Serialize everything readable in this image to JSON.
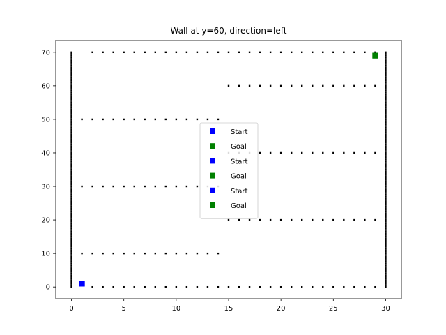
{
  "chart_data": {
    "type": "scatter",
    "title": "Wall at y=60, direction=left",
    "xlabel": "",
    "ylabel": "",
    "xlim": [
      -1.5,
      31.5
    ],
    "ylim": [
      -3.5,
      73.5
    ],
    "x_ticks": [
      0,
      5,
      10,
      15,
      20,
      25,
      30
    ],
    "y_ticks": [
      0,
      10,
      20,
      30,
      40,
      50,
      60,
      70
    ],
    "grid": false,
    "legend_placement": "center",
    "colors": {
      "start": "#0000ff",
      "goal": "#008000",
      "wall": "#000000"
    },
    "walls": [
      {
        "orientation": "horizontal",
        "y": 0,
        "x_from": 2,
        "x_to": 29
      },
      {
        "orientation": "horizontal",
        "y": 70,
        "x_from": 2,
        "x_to": 29
      },
      {
        "orientation": "horizontal",
        "y": 10,
        "x_from": 1,
        "x_to": 14
      },
      {
        "orientation": "horizontal",
        "y": 20,
        "x_from": 15,
        "x_to": 29
      },
      {
        "orientation": "horizontal",
        "y": 30,
        "x_from": 1,
        "x_to": 14
      },
      {
        "orientation": "horizontal",
        "y": 40,
        "x_from": 15,
        "x_to": 29
      },
      {
        "orientation": "horizontal",
        "y": 50,
        "x_from": 1,
        "x_to": 14
      },
      {
        "orientation": "horizontal",
        "y": 60,
        "x_from": 15,
        "x_to": 29
      },
      {
        "orientation": "vertical",
        "x": 0,
        "y_from": 0,
        "y_to": 70
      },
      {
        "orientation": "vertical",
        "x": 30,
        "y_from": 0,
        "y_to": 70
      }
    ],
    "series": [
      {
        "name": "Start",
        "marker": "square",
        "color": "#0000ff",
        "points": [
          [
            1,
            1
          ]
        ]
      },
      {
        "name": "Goal",
        "marker": "square",
        "color": "#008000",
        "points": [
          [
            29,
            69
          ]
        ]
      },
      {
        "name": "Start",
        "marker": "square",
        "color": "#0000ff",
        "points": [
          [
            1,
            1
          ]
        ]
      },
      {
        "name": "Goal",
        "marker": "square",
        "color": "#008000",
        "points": [
          [
            29,
            69
          ]
        ]
      },
      {
        "name": "Start",
        "marker": "square",
        "color": "#0000ff",
        "points": [
          [
            1,
            1
          ]
        ]
      },
      {
        "name": "Goal",
        "marker": "square",
        "color": "#008000",
        "points": [
          [
            29,
            69
          ]
        ]
      }
    ]
  }
}
